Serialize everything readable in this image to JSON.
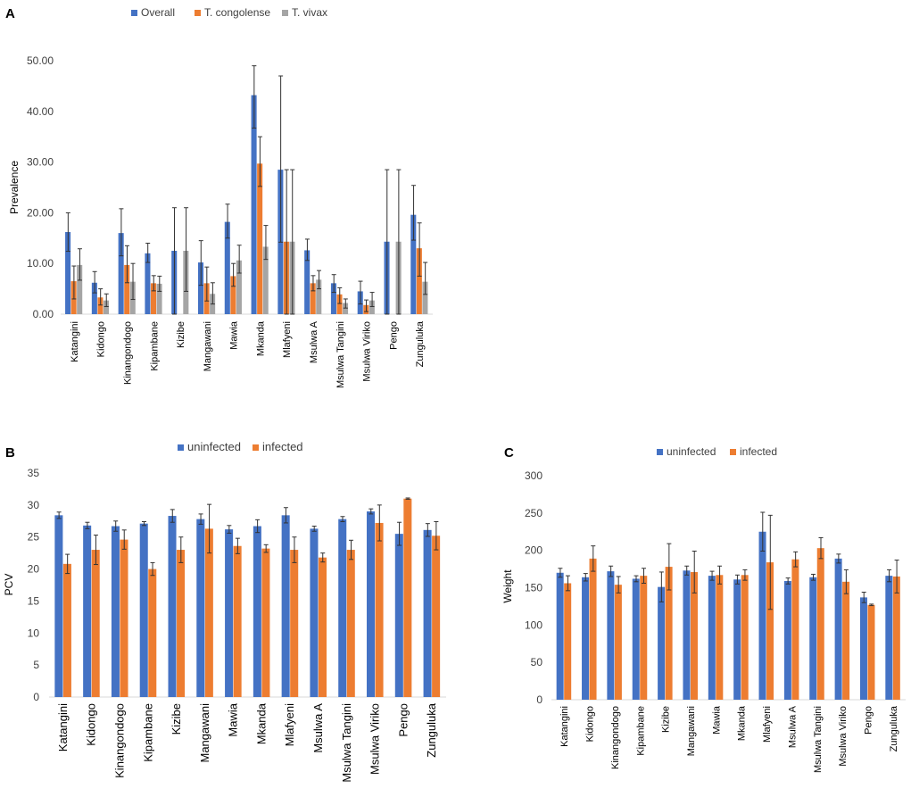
{
  "chart_data": [
    {
      "panel": "A",
      "type": "bar",
      "title": "",
      "xlabel": "",
      "ylabel": "Prevalence",
      "ylim": [
        0,
        50
      ],
      "yticks": [
        "0.00",
        "10.00",
        "20.00",
        "30.00",
        "40.00",
        "50.00"
      ],
      "categories": [
        "Katangini",
        "Kidongo",
        "Kinangondogo",
        "Kipambane",
        "Kizibe",
        "Mangawani",
        "Mawia",
        "Mkanda",
        "Mlafyeni",
        "Msulwa A",
        "Msulwa Tangini",
        "Msulwa Viriko",
        "Pengo",
        "Zunguluka"
      ],
      "series": [
        {
          "name": "Overall",
          "color": "#4472C4",
          "values": [
            16.2,
            6.2,
            16.0,
            12.0,
            12.5,
            10.2,
            18.2,
            43.2,
            28.5,
            12.6,
            6.1,
            4.5,
            14.3,
            19.6
          ],
          "err_low": [
            3.8,
            2.0,
            4.5,
            1.8,
            12.5,
            4.5,
            3.2,
            6.5,
            14.3,
            2.0,
            1.8,
            2.5,
            14.3,
            5.0
          ],
          "err_high": [
            3.8,
            2.2,
            4.8,
            2.0,
            8.5,
            4.3,
            3.5,
            5.8,
            18.5,
            2.2,
            1.7,
            2.0,
            14.2,
            5.8
          ]
        },
        {
          "name": "T. congolense",
          "color": "#ED7D31",
          "values": [
            6.5,
            3.3,
            9.7,
            6.1,
            0,
            6.1,
            7.5,
            29.7,
            14.3,
            6.1,
            3.9,
            1.8,
            0,
            13.0
          ],
          "err_low": [
            3.5,
            1.5,
            3.5,
            1.5,
            0,
            3.5,
            2.0,
            4.5,
            14.3,
            1.5,
            1.8,
            1.3,
            0,
            5.5
          ],
          "err_high": [
            3.0,
            1.7,
            3.8,
            1.5,
            0,
            3.2,
            2.5,
            5.3,
            14.2,
            1.5,
            1.3,
            1.0,
            0,
            5.0
          ]
        },
        {
          "name": "T. vivax",
          "color": "#A5A5A5",
          "values": [
            9.7,
            2.7,
            6.4,
            6.0,
            12.5,
            4.0,
            10.6,
            13.3,
            14.3,
            6.8,
            2.2,
            2.7,
            14.3,
            6.4
          ],
          "err_low": [
            3.0,
            1.2,
            3.5,
            1.5,
            8.0,
            2.0,
            2.5,
            2.5,
            14.3,
            1.8,
            1.0,
            1.2,
            14.3,
            2.5
          ],
          "err_high": [
            3.2,
            1.3,
            3.6,
            1.5,
            8.5,
            2.2,
            3.0,
            4.2,
            14.2,
            1.8,
            0.8,
            1.6,
            14.2,
            3.8
          ]
        }
      ],
      "legend": "top"
    },
    {
      "panel": "B",
      "type": "bar",
      "title": "",
      "xlabel": "",
      "ylabel": "PCV",
      "ylim": [
        0,
        35
      ],
      "yticks": [
        "0",
        "5",
        "10",
        "15",
        "20",
        "25",
        "30",
        "35"
      ],
      "categories": [
        "Katangini",
        "Kidongo",
        "Kinangondogo",
        "Kipambane",
        "Kizibe",
        "Mangawani",
        "Mawia",
        "Mkanda",
        "Mlafyeni",
        "Msulwa A",
        "Msulwa Tangini",
        "Msulwa Viriko",
        "Pengo",
        "Zunguluka"
      ],
      "series": [
        {
          "name": "uninfected",
          "color": "#4472C4",
          "values": [
            28.4,
            26.8,
            26.7,
            27.1,
            28.3,
            27.8,
            26.2,
            26.7,
            28.4,
            26.3,
            27.8,
            29.0,
            25.5,
            26.1
          ],
          "err": [
            0.5,
            0.5,
            0.8,
            0.3,
            1.0,
            0.8,
            0.6,
            1.0,
            1.2,
            0.4,
            0.4,
            0.4,
            1.8,
            1.0
          ]
        },
        {
          "name": "infected",
          "color": "#ED7D31",
          "values": [
            20.8,
            23.0,
            24.6,
            20.0,
            23.0,
            26.3,
            23.6,
            23.2,
            23.0,
            21.8,
            23.0,
            27.2,
            31.0,
            25.2
          ],
          "err": [
            1.5,
            2.3,
            1.5,
            1.0,
            2.0,
            3.8,
            1.2,
            0.6,
            2.0,
            0.7,
            1.5,
            2.8,
            0.1,
            2.2
          ]
        }
      ],
      "legend": "top"
    },
    {
      "panel": "C",
      "type": "bar",
      "title": "",
      "xlabel": "",
      "ylabel": "Weight",
      "ylim": [
        0,
        300
      ],
      "yticks": [
        "0",
        "50",
        "100",
        "150",
        "200",
        "250",
        "300"
      ],
      "categories": [
        "Katangini",
        "Kidongo",
        "Kinangondogo",
        "Kipambane",
        "Kizibe",
        "Mangawani",
        "Mawia",
        "Mkanda",
        "Mlafyeni",
        "Msulwa A",
        "Msulwa Tangini",
        "Msulwa Viriko",
        "Pengo",
        "Zunguluka"
      ],
      "series": [
        {
          "name": "uninfected",
          "color": "#4472C4",
          "values": [
            170,
            164,
            172,
            162,
            151,
            173,
            166,
            161,
            225,
            159,
            164,
            189,
            137,
            166
          ],
          "err": [
            6,
            5,
            7,
            4,
            20,
            6,
            6,
            6,
            26,
            4,
            4,
            6,
            7,
            8
          ]
        },
        {
          "name": "infected",
          "color": "#ED7D31",
          "values": [
            156,
            189,
            154,
            166,
            178,
            171,
            167,
            167,
            184,
            188,
            203,
            158,
            127,
            165
          ],
          "err": [
            10,
            17,
            11,
            10,
            31,
            28,
            12,
            7,
            63,
            10,
            14,
            16,
            1,
            22
          ]
        }
      ],
      "legend": "top"
    }
  ],
  "panel_labels": [
    "A",
    "B",
    "C"
  ]
}
